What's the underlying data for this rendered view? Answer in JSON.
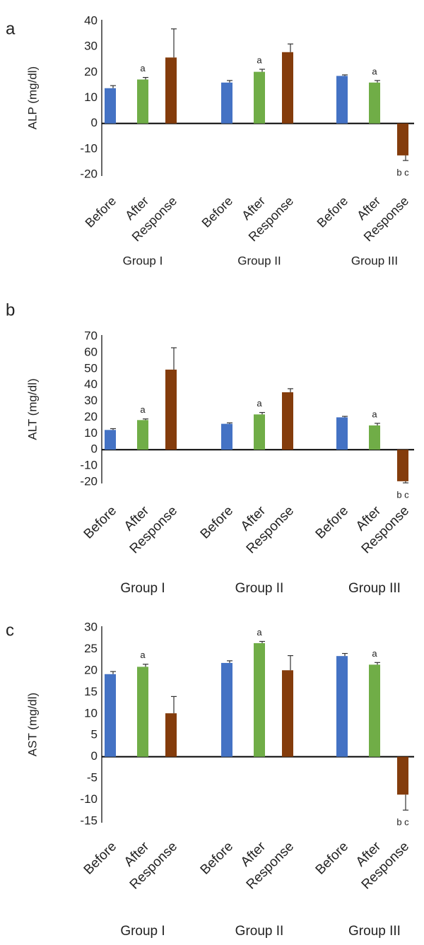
{
  "colors": {
    "before": "#4472C4",
    "after": "#70AD47",
    "response": "#843C0C",
    "axis": "#000000",
    "error_bar": "#333333",
    "text": "#222222"
  },
  "chart_data": [
    {
      "type": "bar",
      "panel_label": "a",
      "ylabel": "ALP (mg/dl)",
      "ylim": [
        -20,
        40
      ],
      "yticks": [
        -20,
        -10,
        0,
        10,
        20,
        30,
        40
      ],
      "grid": false,
      "legend": "none",
      "categories": [
        "Before",
        "After",
        "Response"
      ],
      "groups": [
        "Group I",
        "Group II",
        "Group III"
      ],
      "series": [
        {
          "group": "Group I",
          "values": [
            13.8,
            17.2,
            25.8
          ],
          "errors": [
            1.0,
            0.8,
            11.2
          ],
          "marks": [
            "",
            "a",
            ""
          ]
        },
        {
          "group": "Group II",
          "values": [
            16.0,
            20.2,
            27.9
          ],
          "errors": [
            0.8,
            1.0,
            3.2
          ],
          "marks": [
            "",
            "a",
            ""
          ]
        },
        {
          "group": "Group III",
          "values": [
            18.6,
            16.0,
            -12.5
          ],
          "errors": [
            0.4,
            0.8,
            2.0
          ],
          "marks": [
            "",
            "a",
            "b  c"
          ]
        }
      ]
    },
    {
      "type": "bar",
      "panel_label": "b",
      "ylabel": "ALT (mg/dl)",
      "ylim": [
        -20,
        70
      ],
      "yticks": [
        -20,
        -10,
        0,
        10,
        20,
        30,
        40,
        50,
        60,
        70
      ],
      "grid": false,
      "legend": "none",
      "categories": [
        "Before",
        "After",
        "Response"
      ],
      "groups": [
        "Group I",
        "Group II",
        "Group III"
      ],
      "series": [
        {
          "group": "Group I",
          "values": [
            12.2,
            18.3,
            49.5
          ],
          "errors": [
            0.8,
            0.7,
            13.5
          ],
          "marks": [
            "",
            "a",
            ""
          ]
        },
        {
          "group": "Group II",
          "values": [
            16.0,
            21.8,
            35.5
          ],
          "errors": [
            0.6,
            1.2,
            2.2
          ],
          "marks": [
            "",
            "a",
            ""
          ]
        },
        {
          "group": "Group III",
          "values": [
            20.0,
            15.0,
            -19.5
          ],
          "errors": [
            0.6,
            1.3,
            1.0
          ],
          "marks": [
            "",
            "a",
            "b  c"
          ]
        }
      ]
    },
    {
      "type": "bar",
      "panel_label": "c",
      "ylabel": "AST (mg/dl)",
      "ylim": [
        -15,
        30
      ],
      "yticks": [
        -15,
        -10,
        -5,
        0,
        5,
        10,
        15,
        20,
        25,
        30
      ],
      "grid": false,
      "legend": "none",
      "categories": [
        "Before",
        "After",
        "Response"
      ],
      "groups": [
        "Group I",
        "Group II",
        "Group III"
      ],
      "series": [
        {
          "group": "Group I",
          "values": [
            19.2,
            20.9,
            10.1
          ],
          "errors": [
            0.6,
            0.6,
            3.9
          ],
          "marks": [
            "",
            "a",
            ""
          ]
        },
        {
          "group": "Group II",
          "values": [
            21.8,
            26.4,
            20.1
          ],
          "errors": [
            0.5,
            0.4,
            3.4
          ],
          "marks": [
            "",
            "a",
            ""
          ]
        },
        {
          "group": "Group III",
          "values": [
            23.4,
            21.4,
            -8.8
          ],
          "errors": [
            0.6,
            0.5,
            3.6
          ],
          "marks": [
            "",
            "a",
            "b  c"
          ]
        }
      ]
    }
  ]
}
